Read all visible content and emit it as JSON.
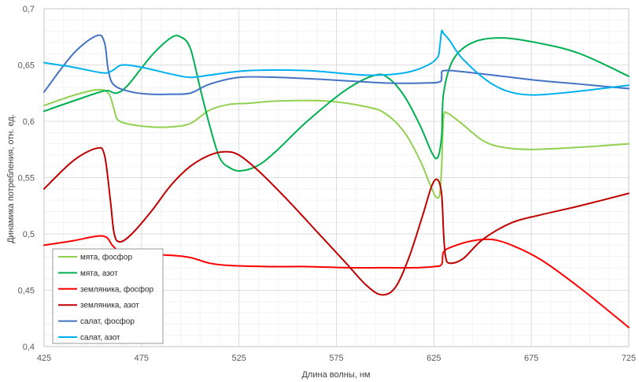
{
  "chart_data": {
    "type": "line",
    "xlabel": "Длина волны, нм",
    "ylabel": "Динамика потребления, отн. ед.",
    "xlim": [
      425,
      725
    ],
    "ylim": [
      0.4,
      0.7
    ],
    "x_ticks": [
      425,
      475,
      525,
      575,
      625,
      675,
      725
    ],
    "x_tick_labels": [
      "425",
      "475",
      "525",
      "575",
      "625",
      "675",
      "725"
    ],
    "y_ticks": [
      0.4,
      0.45,
      0.5,
      0.55,
      0.6,
      0.65,
      0.7
    ],
    "y_tick_labels": [
      "0,4",
      "0,45",
      "0,5",
      "0,55",
      "0,6",
      "0,65",
      "0,7"
    ],
    "grid": true,
    "legend_position": "bottom-left",
    "series": [
      {
        "name": "мята, фосфор",
        "color": "#92d050",
        "x": [
          425,
          440,
          452,
          458,
          461,
          463,
          470,
          480,
          490,
          500,
          510,
          520,
          530,
          545,
          570,
          590,
          600,
          610,
          618,
          623,
          626,
          628,
          629,
          630,
          632,
          634,
          640,
          650,
          660,
          675,
          700,
          725
        ],
        "y": [
          0.614,
          0.623,
          0.628,
          0.625,
          0.61,
          0.601,
          0.597,
          0.595,
          0.595,
          0.598,
          0.61,
          0.615,
          0.616,
          0.618,
          0.618,
          0.613,
          0.607,
          0.59,
          0.565,
          0.544,
          0.533,
          0.535,
          0.56,
          0.604,
          0.607,
          0.605,
          0.597,
          0.583,
          0.577,
          0.575,
          0.577,
          0.58
        ]
      },
      {
        "name": "мята, азот",
        "color": "#00b050",
        "x": [
          425,
          440,
          456,
          462,
          468,
          480,
          490,
          495,
          500,
          505,
          510,
          515,
          520,
          526,
          535,
          545,
          560,
          580,
          595,
          602,
          610,
          618,
          624,
          627,
          629,
          630,
          635,
          645,
          660,
          680,
          700,
          725
        ],
        "y": [
          0.609,
          0.618,
          0.627,
          0.625,
          0.632,
          0.658,
          0.674,
          0.675,
          0.665,
          0.63,
          0.596,
          0.568,
          0.559,
          0.556,
          0.561,
          0.575,
          0.6,
          0.628,
          0.641,
          0.638,
          0.622,
          0.596,
          0.572,
          0.568,
          0.587,
          0.625,
          0.655,
          0.67,
          0.674,
          0.669,
          0.66,
          0.64
        ]
      },
      {
        "name": "земляника, фосфор",
        "color": "#ff0000",
        "x": [
          425,
          440,
          452,
          457,
          460,
          463,
          467,
          475,
          490,
          500,
          510,
          520,
          540,
          560,
          580,
          600,
          615,
          625,
          629,
          630,
          635,
          645,
          655,
          665,
          680,
          700,
          725
        ],
        "y": [
          0.49,
          0.494,
          0.498,
          0.497,
          0.49,
          0.485,
          0.483,
          0.482,
          0.481,
          0.479,
          0.474,
          0.472,
          0.471,
          0.471,
          0.47,
          0.47,
          0.47,
          0.471,
          0.473,
          0.484,
          0.489,
          0.494,
          0.495,
          0.49,
          0.477,
          0.452,
          0.417
        ]
      },
      {
        "name": "земляника, азот",
        "color": "#c00000",
        "x": [
          425,
          440,
          452,
          456,
          459,
          461,
          464,
          470,
          480,
          490,
          500,
          510,
          518,
          525,
          535,
          550,
          565,
          580,
          590,
          598,
          605,
          612,
          619,
          624,
          627,
          629,
          630,
          631,
          633,
          640,
          650,
          665,
          680,
          700,
          725
        ],
        "y": [
          0.54,
          0.565,
          0.576,
          0.57,
          0.53,
          0.5,
          0.493,
          0.5,
          0.52,
          0.543,
          0.56,
          0.57,
          0.573,
          0.57,
          0.556,
          0.53,
          0.502,
          0.474,
          0.455,
          0.446,
          0.452,
          0.478,
          0.515,
          0.543,
          0.548,
          0.535,
          0.5,
          0.48,
          0.474,
          0.478,
          0.495,
          0.51,
          0.517,
          0.525,
          0.536
        ]
      },
      {
        "name": "салат, фосфор",
        "color": "#4472c4",
        "x": [
          425,
          440,
          452,
          456,
          458,
          461,
          470,
          480,
          490,
          500,
          510,
          525,
          545,
          570,
          600,
          620,
          628,
          629,
          630,
          640,
          660,
          680,
          700,
          725
        ],
        "y": [
          0.626,
          0.66,
          0.676,
          0.67,
          0.645,
          0.632,
          0.626,
          0.624,
          0.624,
          0.625,
          0.633,
          0.639,
          0.639,
          0.637,
          0.634,
          0.634,
          0.635,
          0.64,
          0.645,
          0.644,
          0.64,
          0.636,
          0.633,
          0.629
        ]
      },
      {
        "name": "салат, азот",
        "color": "#00b0f0",
        "x": [
          425,
          440,
          455,
          460,
          465,
          475,
          490,
          500,
          510,
          530,
          560,
          590,
          610,
          622,
          627,
          628,
          629,
          630,
          633,
          640,
          655,
          670,
          690,
          725
        ],
        "y": [
          0.652,
          0.648,
          0.643,
          0.645,
          0.65,
          0.648,
          0.642,
          0.639,
          0.641,
          0.645,
          0.645,
          0.641,
          0.643,
          0.65,
          0.657,
          0.666,
          0.68,
          0.678,
          0.672,
          0.655,
          0.633,
          0.624,
          0.625,
          0.632
        ]
      }
    ]
  }
}
